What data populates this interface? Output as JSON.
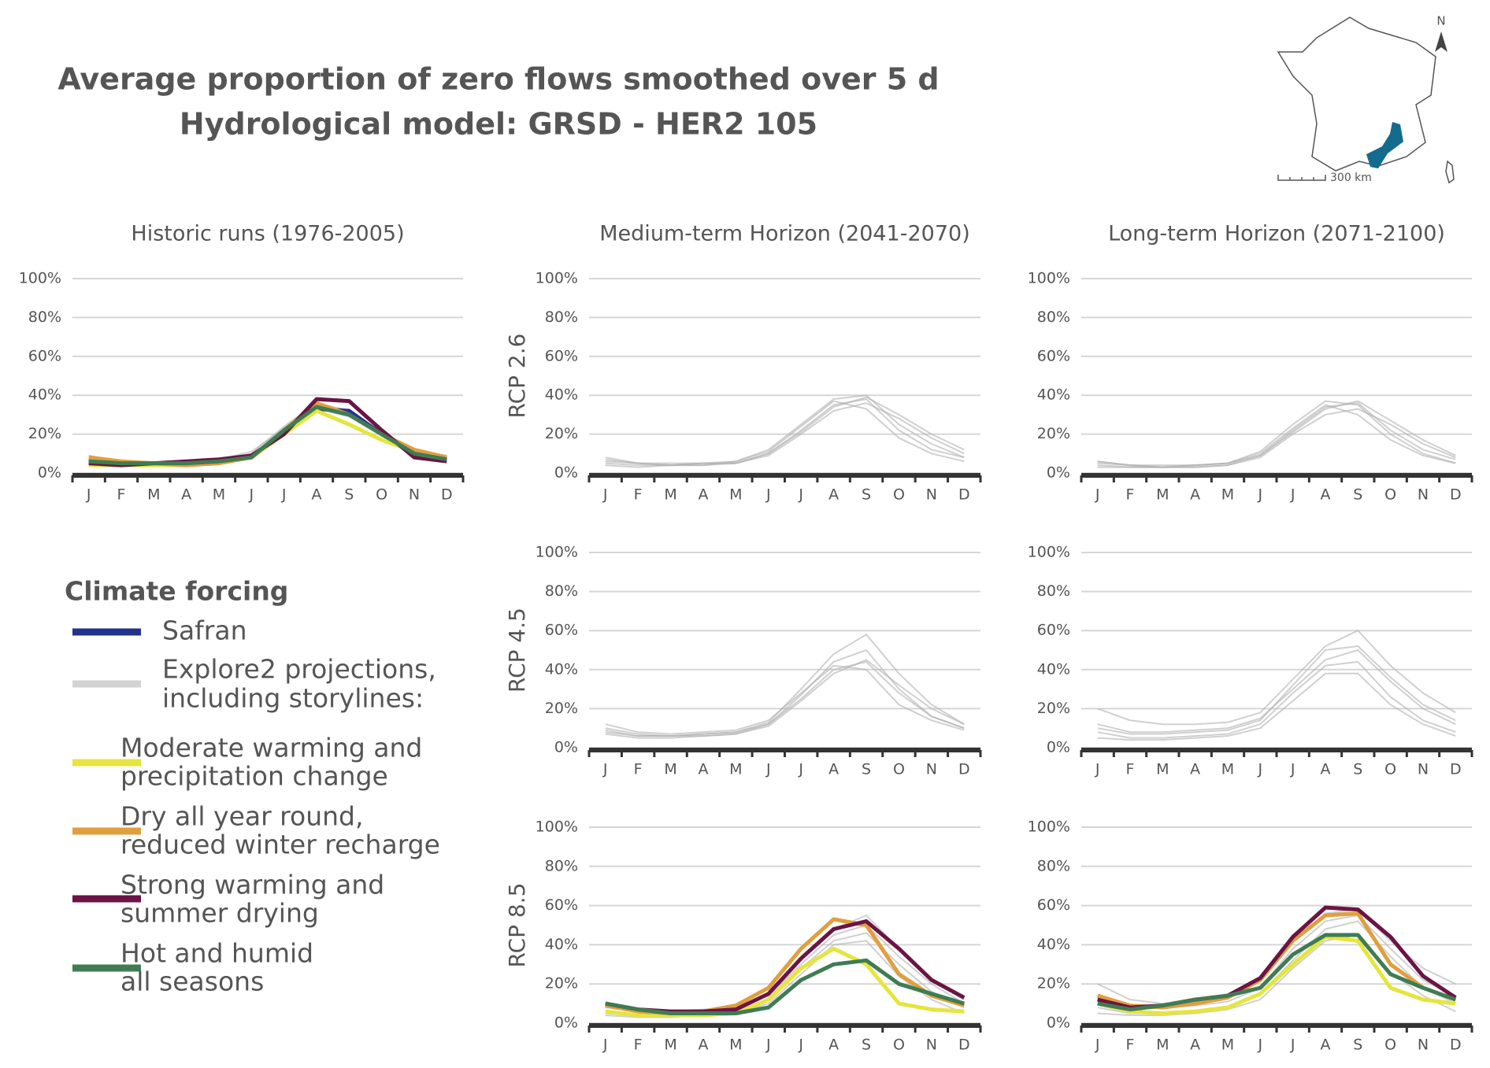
{
  "header": {
    "title": [
      "Average proportion of zero flows smoothed over 5 d",
      "Hydrological model: GRSD - HER2 105"
    ]
  },
  "map": {
    "north": "N",
    "scale": "300 km"
  },
  "legend": {
    "title": "Climate forcing",
    "entries": [
      {
        "label": [
          "Safran"
        ],
        "color": "#23318f"
      },
      {
        "label": [
          "Explore2 projections,",
          "including storylines:"
        ],
        "color": "#d3d3d3"
      },
      {
        "label": [
          "Moderate warming and",
          "precipitation change"
        ],
        "color": "#e5e53e"
      },
      {
        "label": [
          "Dry all year round,",
          "reduced winter recharge"
        ],
        "color": "#e09f3e"
      },
      {
        "label": [
          "Strong warming and",
          "summer drying"
        ],
        "color": "#6b1445"
      },
      {
        "label": [
          "Hot and humid",
          "all seasons"
        ],
        "color": "#3f7c54"
      }
    ]
  },
  "chart_data": [
    {
      "type": "line",
      "title": "Historic runs (1976-2005)",
      "categories": [
        "J",
        "F",
        "M",
        "A",
        "M",
        "J",
        "J",
        "A",
        "S",
        "O",
        "N",
        "D"
      ],
      "ylim": [
        0,
        100
      ],
      "yticks": [
        {
          "value": 0,
          "label": "0%"
        },
        {
          "value": 20,
          "label": "20%"
        },
        {
          "value": 40,
          "label": "40%"
        },
        {
          "value": 60,
          "label": "60%"
        },
        {
          "value": 80,
          "label": "80%"
        },
        {
          "value": 100,
          "label": "100%"
        }
      ],
      "grid": true,
      "series": [
        {
          "color": "#b0b0b0",
          "values": [
            9,
            6,
            5,
            5,
            6,
            10,
            24,
            36,
            32,
            20,
            12,
            9
          ]
        },
        {
          "color": "#b0b0b0",
          "values": [
            4,
            4,
            4,
            5,
            6,
            9,
            22,
            33,
            29,
            19,
            11,
            7
          ]
        },
        {
          "color": "#b0b0b0",
          "values": [
            7,
            5,
            5,
            5,
            7,
            11,
            23,
            35,
            31,
            21,
            12,
            8
          ]
        },
        {
          "color": "#23318f",
          "values": [
            6,
            5,
            5,
            5,
            6,
            8,
            21,
            33,
            32,
            20,
            10,
            7
          ]
        },
        {
          "color": "#e5e53e",
          "values": [
            4,
            4,
            4,
            4,
            5,
            8,
            20,
            32,
            25,
            17,
            11,
            8
          ]
        },
        {
          "color": "#e09f3e",
          "values": [
            8,
            6,
            5,
            4,
            5,
            8,
            22,
            36,
            30,
            20,
            12,
            8
          ]
        },
        {
          "color": "#6b1445",
          "values": [
            5,
            4,
            5,
            6,
            7,
            9,
            20,
            38,
            37,
            22,
            8,
            6
          ]
        },
        {
          "color": "#3f7c54",
          "values": [
            6,
            5,
            5,
            5,
            6,
            8,
            22,
            34,
            30,
            20,
            10,
            7
          ]
        }
      ]
    },
    {
      "type": "line",
      "title": "Medium-term Horizon (2041-2070)",
      "ylabel": "RCP 2.6",
      "categories": [
        "J",
        "F",
        "M",
        "A",
        "M",
        "J",
        "J",
        "A",
        "S",
        "O",
        "N",
        "D"
      ],
      "ylim": [
        0,
        100
      ],
      "yticks": [
        {
          "value": 0,
          "label": "0%"
        },
        {
          "value": 20,
          "label": "20%"
        },
        {
          "value": 40,
          "label": "40%"
        },
        {
          "value": 60,
          "label": "60%"
        },
        {
          "value": 80,
          "label": "80%"
        },
        {
          "value": 100,
          "label": "100%"
        }
      ],
      "grid": true,
      "series": [
        {
          "color": "#b0b0b0",
          "values": [
            8,
            5,
            4,
            5,
            5,
            10,
            22,
            35,
            38,
            22,
            12,
            8
          ]
        },
        {
          "color": "#b0b0b0",
          "values": [
            5,
            4,
            4,
            4,
            6,
            12,
            25,
            38,
            40,
            25,
            15,
            8
          ]
        },
        {
          "color": "#b0b0b0",
          "values": [
            6,
            5,
            5,
            5,
            5,
            9,
            20,
            32,
            36,
            28,
            18,
            10
          ]
        },
        {
          "color": "#b0b0b0",
          "values": [
            4,
            3,
            4,
            5,
            6,
            11,
            24,
            37,
            33,
            18,
            10,
            6
          ]
        },
        {
          "color": "#b0b0b0",
          "values": [
            7,
            5,
            4,
            4,
            5,
            10,
            21,
            34,
            39,
            30,
            20,
            12
          ]
        }
      ]
    },
    {
      "type": "line",
      "title": "Long-term Horizon (2071-2100)",
      "categories": [
        "J",
        "F",
        "M",
        "A",
        "M",
        "J",
        "J",
        "A",
        "S",
        "O",
        "N",
        "D"
      ],
      "ylim": [
        0,
        100
      ],
      "yticks": [
        {
          "value": 0,
          "label": "0%"
        },
        {
          "value": 20,
          "label": "20%"
        },
        {
          "value": 40,
          "label": "40%"
        },
        {
          "value": 60,
          "label": "60%"
        },
        {
          "value": 80,
          "label": "80%"
        },
        {
          "value": 100,
          "label": "100%"
        }
      ],
      "grid": true,
      "series": [
        {
          "color": "#b0b0b0",
          "values": [
            6,
            4,
            3,
            3,
            4,
            9,
            22,
            34,
            36,
            22,
            12,
            7
          ]
        },
        {
          "color": "#b0b0b0",
          "values": [
            4,
            3,
            3,
            4,
            5,
            11,
            25,
            37,
            35,
            20,
            10,
            5
          ]
        },
        {
          "color": "#b0b0b0",
          "values": [
            5,
            4,
            3,
            3,
            4,
            8,
            20,
            30,
            33,
            25,
            15,
            8
          ]
        },
        {
          "color": "#b0b0b0",
          "values": [
            3,
            3,
            3,
            4,
            5,
            10,
            23,
            35,
            30,
            17,
            9,
            5
          ]
        },
        {
          "color": "#b0b0b0",
          "values": [
            6,
            4,
            4,
            4,
            5,
            9,
            21,
            33,
            37,
            27,
            17,
            9
          ]
        }
      ]
    },
    {
      "type": "line",
      "ylabel": "RCP 4.5",
      "categories": [
        "J",
        "F",
        "M",
        "A",
        "M",
        "J",
        "J",
        "A",
        "S",
        "O",
        "N",
        "D"
      ],
      "ylim": [
        0,
        100
      ],
      "yticks": [
        {
          "value": 0,
          "label": "0%"
        },
        {
          "value": 20,
          "label": "20%"
        },
        {
          "value": 40,
          "label": "40%"
        },
        {
          "value": 60,
          "label": "60%"
        },
        {
          "value": 80,
          "label": "80%"
        },
        {
          "value": 100,
          "label": "100%"
        }
      ],
      "grid": true,
      "series": [
        {
          "color": "#b0b0b0",
          "values": [
            10,
            7,
            6,
            6,
            7,
            12,
            25,
            40,
            44,
            28,
            16,
            10
          ]
        },
        {
          "color": "#b0b0b0",
          "values": [
            8,
            6,
            6,
            7,
            8,
            13,
            30,
            48,
            58,
            38,
            22,
            12
          ]
        },
        {
          "color": "#b0b0b0",
          "values": [
            12,
            8,
            7,
            8,
            9,
            14,
            28,
            42,
            40,
            22,
            14,
            9
          ]
        },
        {
          "color": "#b0b0b0",
          "values": [
            7,
            5,
            5,
            6,
            7,
            11,
            24,
            38,
            45,
            32,
            20,
            12
          ]
        },
        {
          "color": "#b0b0b0",
          "values": [
            9,
            6,
            6,
            7,
            8,
            12,
            27,
            44,
            50,
            30,
            16,
            10
          ]
        }
      ]
    },
    {
      "type": "line",
      "categories": [
        "J",
        "F",
        "M",
        "A",
        "M",
        "J",
        "J",
        "A",
        "S",
        "O",
        "N",
        "D"
      ],
      "ylim": [
        0,
        100
      ],
      "yticks": [
        {
          "value": 0,
          "label": "0%"
        },
        {
          "value": 20,
          "label": "20%"
        },
        {
          "value": 40,
          "label": "40%"
        },
        {
          "value": 60,
          "label": "60%"
        },
        {
          "value": 80,
          "label": "80%"
        },
        {
          "value": 100,
          "label": "100%"
        }
      ],
      "grid": true,
      "series": [
        {
          "color": "#b0b0b0",
          "values": [
            20,
            14,
            12,
            12,
            13,
            18,
            35,
            52,
            60,
            42,
            28,
            18
          ]
        },
        {
          "color": "#b0b0b0",
          "values": [
            8,
            5,
            5,
            6,
            7,
            12,
            28,
            42,
            44,
            26,
            14,
            8
          ]
        },
        {
          "color": "#b0b0b0",
          "values": [
            12,
            8,
            8,
            9,
            10,
            15,
            30,
            45,
            50,
            34,
            20,
            12
          ]
        },
        {
          "color": "#b0b0b0",
          "values": [
            5,
            4,
            4,
            5,
            6,
            10,
            24,
            38,
            38,
            22,
            12,
            6
          ]
        },
        {
          "color": "#b0b0b0",
          "values": [
            10,
            7,
            7,
            8,
            9,
            14,
            32,
            50,
            52,
            36,
            22,
            14
          ]
        }
      ]
    },
    {
      "type": "line",
      "ylabel": "RCP 8.5",
      "categories": [
        "J",
        "F",
        "M",
        "A",
        "M",
        "J",
        "J",
        "A",
        "S",
        "O",
        "N",
        "D"
      ],
      "ylim": [
        0,
        100
      ],
      "yticks": [
        {
          "value": 0,
          "label": "0%"
        },
        {
          "value": 20,
          "label": "20%"
        },
        {
          "value": 40,
          "label": "40%"
        },
        {
          "value": 60,
          "label": "60%"
        },
        {
          "value": 80,
          "label": "80%"
        },
        {
          "value": 100,
          "label": "100%"
        }
      ],
      "grid": true,
      "series": [
        {
          "color": "#b0b0b0",
          "values": [
            8,
            6,
            5,
            6,
            8,
            15,
            32,
            48,
            55,
            38,
            22,
            12
          ]
        },
        {
          "color": "#b0b0b0",
          "values": [
            5,
            4,
            4,
            5,
            6,
            12,
            28,
            42,
            46,
            30,
            16,
            8
          ]
        },
        {
          "color": "#b0b0b0",
          "values": [
            10,
            7,
            6,
            7,
            8,
            14,
            30,
            45,
            50,
            34,
            20,
            10
          ]
        },
        {
          "color": "#b0b0b0",
          "values": [
            4,
            3,
            3,
            4,
            5,
            10,
            25,
            40,
            42,
            24,
            12,
            5
          ]
        },
        {
          "color": "#e5e53e",
          "values": [
            6,
            4,
            4,
            4,
            5,
            12,
            28,
            38,
            30,
            10,
            7,
            6
          ]
        },
        {
          "color": "#e09f3e",
          "values": [
            9,
            6,
            5,
            6,
            9,
            18,
            38,
            53,
            50,
            25,
            14,
            9
          ]
        },
        {
          "color": "#6b1445",
          "values": [
            10,
            7,
            6,
            6,
            7,
            15,
            33,
            48,
            52,
            38,
            22,
            13
          ]
        },
        {
          "color": "#3f7c54",
          "values": [
            10,
            7,
            5,
            5,
            5,
            8,
            22,
            30,
            32,
            20,
            15,
            10
          ]
        }
      ]
    },
    {
      "type": "line",
      "categories": [
        "J",
        "F",
        "M",
        "A",
        "M",
        "J",
        "J",
        "A",
        "S",
        "O",
        "N",
        "D"
      ],
      "ylim": [
        0,
        100
      ],
      "yticks": [
        {
          "value": 0,
          "label": "0%"
        },
        {
          "value": 20,
          "label": "20%"
        },
        {
          "value": 40,
          "label": "40%"
        },
        {
          "value": 60,
          "label": "60%"
        },
        {
          "value": 80,
          "label": "80%"
        },
        {
          "value": 100,
          "label": "100%"
        }
      ],
      "grid": true,
      "series": [
        {
          "color": "#b0b0b0",
          "values": [
            20,
            12,
            10,
            11,
            13,
            22,
            42,
            56,
            58,
            42,
            28,
            20
          ]
        },
        {
          "color": "#b0b0b0",
          "values": [
            8,
            5,
            5,
            6,
            8,
            15,
            32,
            48,
            52,
            34,
            18,
            10
          ]
        },
        {
          "color": "#b0b0b0",
          "values": [
            12,
            8,
            8,
            9,
            11,
            18,
            38,
            52,
            55,
            38,
            22,
            14
          ]
        },
        {
          "color": "#b0b0b0",
          "values": [
            5,
            4,
            4,
            5,
            7,
            12,
            28,
            42,
            45,
            26,
            14,
            6
          ]
        },
        {
          "color": "#e5e53e",
          "values": [
            10,
            6,
            5,
            6,
            8,
            15,
            30,
            44,
            42,
            18,
            12,
            10
          ]
        },
        {
          "color": "#e09f3e",
          "values": [
            14,
            9,
            8,
            10,
            13,
            22,
            42,
            55,
            56,
            30,
            18,
            12
          ]
        },
        {
          "color": "#6b1445",
          "values": [
            12,
            8,
            9,
            12,
            14,
            23,
            44,
            59,
            58,
            44,
            24,
            13
          ]
        },
        {
          "color": "#3f7c54",
          "values": [
            10,
            7,
            9,
            12,
            14,
            18,
            35,
            45,
            45,
            25,
            18,
            12
          ]
        }
      ]
    }
  ]
}
